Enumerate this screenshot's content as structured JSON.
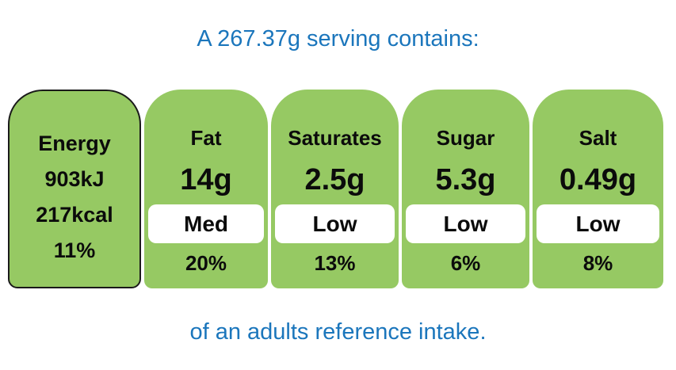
{
  "header": {
    "title": "A 267.37g serving contains:"
  },
  "footer": {
    "note": "of an adults reference intake."
  },
  "colors": {
    "green": "#96c963",
    "blue": "#1b76bc",
    "ink": "#0b0b0b",
    "badge": "#ffffff",
    "outline": "#1a1a1a"
  },
  "energy": {
    "label": "Energy",
    "kilojoules": "903kJ",
    "kilocalories": "217kcal",
    "percent": "11%"
  },
  "nutrients": [
    {
      "label": "Fat",
      "amount": "14g",
      "level": "Med",
      "percent": "20%"
    },
    {
      "label": "Saturates",
      "amount": "2.5g",
      "level": "Low",
      "percent": "13%"
    },
    {
      "label": "Sugar",
      "amount": "5.3g",
      "level": "Low",
      "percent": "6%"
    },
    {
      "label": "Salt",
      "amount": "0.49g",
      "level": "Low",
      "percent": "8%"
    }
  ]
}
